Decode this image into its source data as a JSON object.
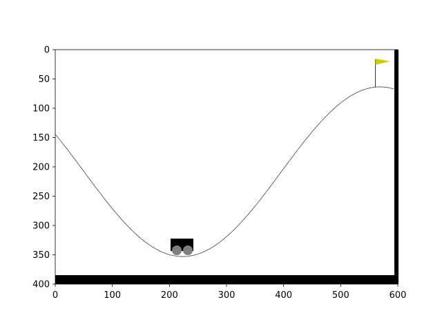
{
  "environment": "MountainCar",
  "colors": {
    "track": "#555555",
    "cart_body": "#000000",
    "wheel": "#7f7f7f",
    "flag": "#cccc00",
    "flagpole": "#000000",
    "frame": "#000000",
    "background": "#ffffff"
  },
  "axes": {
    "x_range": [
      0,
      600
    ],
    "y_range": [
      0,
      400
    ],
    "y_inverted": true,
    "x_ticks": [
      0,
      100,
      200,
      300,
      400,
      500,
      600
    ],
    "y_ticks": [
      0,
      50,
      100,
      150,
      200,
      250,
      300,
      350,
      400
    ],
    "x_tick_labels": [
      "0",
      "100",
      "200",
      "300",
      "400",
      "500",
      "600"
    ],
    "y_tick_labels": [
      "0",
      "50",
      "100",
      "150",
      "200",
      "250",
      "300",
      "350",
      "400"
    ]
  },
  "icons": {
    "car": "mountain-car",
    "goal": "goal-flag"
  }
}
